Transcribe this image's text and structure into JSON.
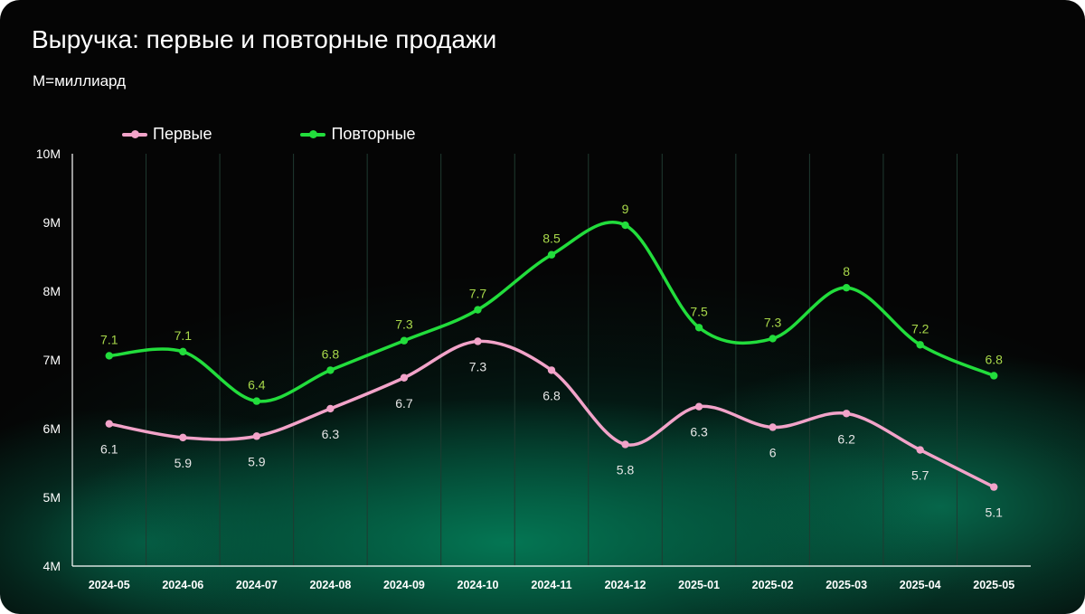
{
  "title": "Выручка: первые и повторные продажи",
  "subtitle": "M=миллиард",
  "colors": {
    "background": "#050505",
    "first": "#f2a3c9",
    "repeat": "#22dd3c",
    "first_label": "#e6e6e6",
    "repeat_label": "#a8d84a",
    "gridline": "#1f3b31",
    "axis": "#ffffff"
  },
  "chart_data": {
    "type": "line",
    "title": "Выручка: первые и повторные продажи",
    "subtitle": "M=миллиард",
    "xlabel": "",
    "ylabel": "",
    "ylim": [
      4,
      10
    ],
    "yticks": [
      "4M",
      "5M",
      "6M",
      "7M",
      "8M",
      "9M",
      "10M"
    ],
    "ytick_values": [
      4,
      5,
      6,
      7,
      8,
      9,
      10
    ],
    "grid": "vertical",
    "legend_position": "top-left",
    "smooth": true,
    "categories": [
      "2024-05",
      "2024-06",
      "2024-07",
      "2024-08",
      "2024-09",
      "2024-10",
      "2024-11",
      "2024-12",
      "2025-01",
      "2025-02",
      "2025-03",
      "2025-04",
      "2025-05"
    ],
    "series": [
      {
        "name": "Первые",
        "color": "#f2a3c9",
        "values": [
          6.07,
          5.87,
          5.89,
          6.29,
          6.74,
          7.27,
          6.85,
          5.77,
          6.32,
          6.02,
          6.22,
          5.69,
          5.15
        ],
        "labels": [
          "6.1",
          "5.9",
          "5.9",
          "6.3",
          "6.7",
          "7.3",
          "6.8",
          "5.8",
          "6.3",
          "6",
          "6.2",
          "5.7",
          "5.1"
        ],
        "label_position": "below"
      },
      {
        "name": "Повторные",
        "color": "#22dd3c",
        "values": [
          7.06,
          7.12,
          6.4,
          6.85,
          7.28,
          7.73,
          8.53,
          8.96,
          7.47,
          7.31,
          8.05,
          7.22,
          6.77
        ],
        "labels": [
          "7.1",
          "7.1",
          "6.4",
          "6.8",
          "7.3",
          "7.7",
          "8.5",
          "9",
          "7.5",
          "7.3",
          "8",
          "7.2",
          "6.8"
        ],
        "label_position": "above"
      }
    ]
  }
}
